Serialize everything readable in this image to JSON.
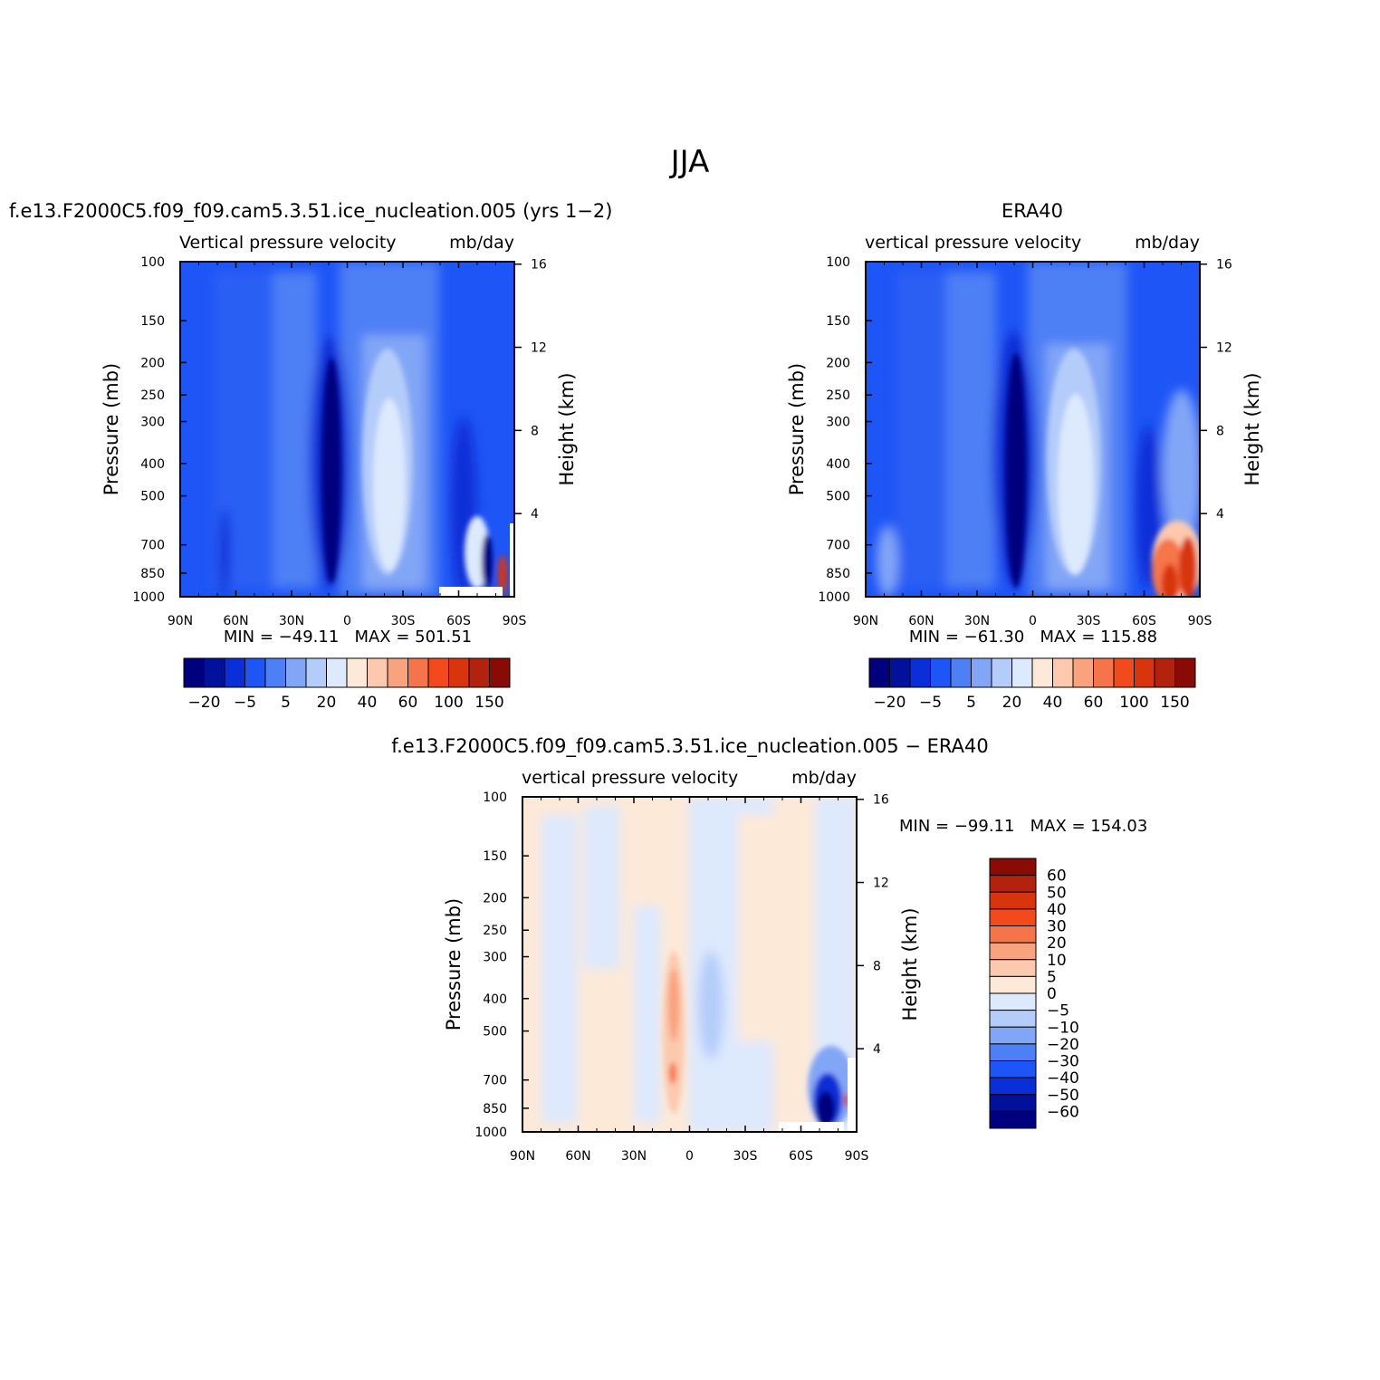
{
  "figure_title": "JJA",
  "latitude_ticks": [
    "90N",
    "60N",
    "30N",
    "0",
    "30S",
    "60S",
    "90S"
  ],
  "pressure_ticks": [
    "100",
    "150",
    "200",
    "250",
    "300",
    "400",
    "500",
    "700",
    "850",
    "1000"
  ],
  "pressure_values": [
    100,
    150,
    200,
    250,
    300,
    400,
    500,
    700,
    850,
    1000
  ],
  "height_ticks": [
    "16",
    "12",
    "8",
    "4"
  ],
  "height_values": [
    16,
    12,
    8,
    4
  ],
  "y_axis_label": "Pressure (mb)",
  "right_axis_label": "Height (km)",
  "panels": [
    {
      "title": "f.e13.F2000C5.f09_f09.cam5.3.51.ice_nucleation.005 (yrs 1−2)",
      "left_subtitle": "Vertical pressure velocity",
      "right_subtitle": "mb/day",
      "minmax": "MIN = −49.11   MAX = 501.51"
    },
    {
      "title": "ERA40",
      "left_subtitle": "vertical pressure velocity",
      "right_subtitle": "mb/day",
      "minmax": "MIN = −61.30   MAX = 115.88"
    },
    {
      "title": "f.e13.F2000C5.f09_f09.cam5.3.51.ice_nucleation.005 − ERA40",
      "left_subtitle": "vertical pressure velocity",
      "right_subtitle": "mb/day",
      "minmax": "MIN = −99.11   MAX = 154.03"
    }
  ],
  "colorbar_main": {
    "labels": [
      "−20",
      "−5",
      "5",
      "20",
      "40",
      "60",
      "100",
      "150"
    ],
    "colors": [
      "#00007f",
      "#00129c",
      "#0a2ed7",
      "#1e55f6",
      "#4d7ff5",
      "#82a6f6",
      "#b4ccf9",
      "#dde9fd",
      "#fde9d8",
      "#fcc9ae",
      "#f9a27e",
      "#f6744a",
      "#f24a1c",
      "#d8350c",
      "#b3220c",
      "#8a0b06"
    ]
  },
  "colorbar_diff": {
    "labels": [
      "60",
      "50",
      "40",
      "30",
      "20",
      "10",
      "5",
      "0",
      "−5",
      "−10",
      "−20",
      "−30",
      "−40",
      "−50",
      "−60"
    ],
    "colors": [
      "#8a0b06",
      "#b3220c",
      "#d8350c",
      "#f24a1c",
      "#f6744a",
      "#f9a27e",
      "#fcc9ae",
      "#fde9d8",
      "#dde9fd",
      "#b4ccf9",
      "#82a6f6",
      "#4d7ff5",
      "#1e55f6",
      "#0a2ed7",
      "#00129c",
      "#00007f"
    ]
  },
  "chart_data": [
    {
      "type": "heatmap",
      "title": "f.e13.F2000C5.f09_f09.cam5.3.51.ice_nucleation.005 (yrs 1−2)",
      "subtitle": "Vertical pressure velocity",
      "units": "mb/day",
      "xlabel": "",
      "ylabel": "Pressure (mb)",
      "y2label": "Height (km)",
      "x_range": [
        "90N",
        "90S"
      ],
      "ylim": [
        1000,
        100
      ],
      "y_scale": "log",
      "min": -49.11,
      "max": 501.51,
      "approx_features": [
        {
          "lat": "10N",
          "p_range": [
            1000,
            180
          ],
          "value": -30
        },
        {
          "lat": "20S",
          "p_range": [
            950,
            250
          ],
          "value": 30
        },
        {
          "lat": "75S",
          "p_range": [
            1000,
            620
          ],
          "value": 60
        }
      ]
    },
    {
      "type": "heatmap",
      "title": "ERA40",
      "subtitle": "vertical pressure velocity",
      "units": "mb/day",
      "xlabel": "",
      "ylabel": "Pressure (mb)",
      "y2label": "Height (km)",
      "x_range": [
        "90N",
        "90S"
      ],
      "ylim": [
        1000,
        100
      ],
      "y_scale": "log",
      "min": -61.3,
      "max": 115.88,
      "approx_features": [
        {
          "lat": "10N",
          "p_range": [
            1000,
            180
          ],
          "value": -30
        },
        {
          "lat": "20S",
          "p_range": [
            950,
            230
          ],
          "value": 30
        },
        {
          "lat": "80S",
          "p_range": [
            1000,
            650
          ],
          "value": 60
        }
      ]
    },
    {
      "type": "heatmap",
      "title": "f.e13.F2000C5.f09_f09.cam5.3.51.ice_nucleation.005 − ERA40",
      "subtitle": "vertical pressure velocity",
      "units": "mb/day",
      "xlabel": "",
      "ylabel": "Pressure (mb)",
      "y2label": "Height (km)",
      "x_range": [
        "90N",
        "90S"
      ],
      "ylim": [
        1000,
        100
      ],
      "y_scale": "log",
      "min": -99.11,
      "max": 154.03,
      "approx_features": [
        {
          "lat": "8S",
          "p_range": [
            850,
            300
          ],
          "value": 10
        },
        {
          "lat": "80S",
          "p_range": [
            1000,
            800
          ],
          "value": -60
        }
      ]
    }
  ]
}
